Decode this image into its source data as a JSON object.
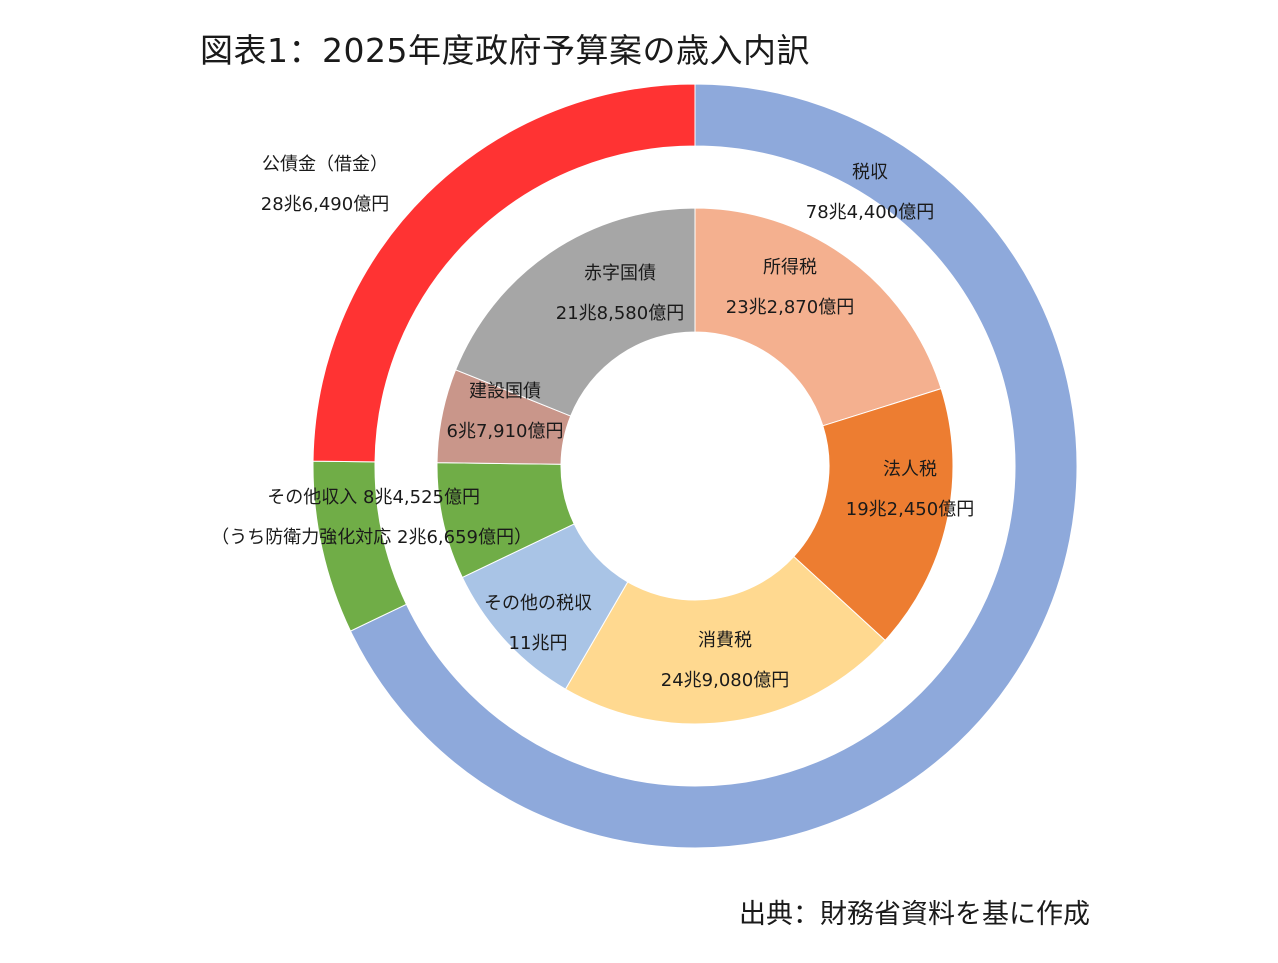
{
  "title": "図表1：2025年度政府予算案の歳入内訳",
  "source": "出典：財務省資料を基に作成",
  "colors": {
    "tax_outer": "#8EA9DB",
    "bond_outer": "#FF3333",
    "other_outer": "#70AD47",
    "deficit_bond": "#A6A6A6",
    "construction_bond": "#C9968A",
    "other_inner": "#70AD47",
    "other_tax": "#A9C4E6",
    "consumption_tax": "#FFD990",
    "corporate_tax": "#ED7D31",
    "income_tax": "#F4B08F"
  },
  "chart_data": {
    "type": "pie",
    "subtype": "doughnut",
    "unit": "億円",
    "rings": [
      {
        "ring": "outer",
        "slices": [
          {
            "label": "税収",
            "value_label": "78兆4,400億円",
            "value": 784400,
            "color_key": "tax_outer"
          },
          {
            "label": "その他収入",
            "value_label": "8兆4,525億円",
            "sub_label": "（うち防衛力強化対応 2兆6,659億円）",
            "value": 84525,
            "color_key": "other_outer"
          },
          {
            "label": "公債金（借金）",
            "value_label": "28兆6,490億円",
            "value": 286490,
            "color_key": "bond_outer"
          }
        ]
      },
      {
        "ring": "inner",
        "slices": [
          {
            "label": "所得税",
            "value_label": "23兆2,870億円",
            "value": 232870,
            "color_key": "income_tax"
          },
          {
            "label": "法人税",
            "value_label": "19兆2,450億円",
            "value": 192450,
            "color_key": "corporate_tax"
          },
          {
            "label": "消費税",
            "value_label": "24兆9,080億円",
            "value": 249080,
            "color_key": "consumption_tax"
          },
          {
            "label": "その他の税収",
            "value_label": "11兆円",
            "value": 110000,
            "color_key": "other_tax"
          },
          {
            "label": "",
            "value_label": "",
            "value": 84525,
            "color_key": "other_inner"
          },
          {
            "label": "建設国債",
            "value_label": "6兆7,910億円",
            "value": 67910,
            "color_key": "construction_bond"
          },
          {
            "label": "赤字国債",
            "value_label": "21兆8,580億円",
            "value": 218580,
            "color_key": "deficit_bond"
          }
        ]
      }
    ]
  }
}
